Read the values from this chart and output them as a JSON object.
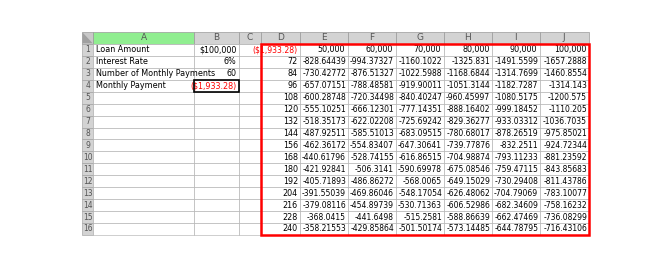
{
  "left_labels": [
    "Loan Amount",
    "Interest Rate",
    "Number of Monthly Payments",
    "Monthly Payment"
  ],
  "left_values": [
    "$100,000",
    "6%",
    "60",
    "($1,933.28)"
  ],
  "col_letters": [
    "A",
    "B",
    "C",
    "D",
    "E",
    "F",
    "G",
    "H",
    "I",
    "J"
  ],
  "row_numbers": [
    "1",
    "2",
    "3",
    "4",
    "5",
    "6",
    "7",
    "8",
    "9",
    "10",
    "11",
    "12",
    "13",
    "14",
    "15",
    "16"
  ],
  "col_headers_row1": [
    "($1,933.28)",
    "50,000",
    "60,000",
    "70,000",
    "80,000",
    "90,000",
    "100,000"
  ],
  "row_headers": [
    72,
    84,
    96,
    108,
    120,
    132,
    144,
    156,
    168,
    180,
    192,
    204,
    216,
    228,
    240
  ],
  "table_data": [
    [
      -828.64439,
      -994.37327,
      -1160.1022,
      -1325.831,
      -1491.5599,
      -1657.2888
    ],
    [
      -730.42772,
      -876.51327,
      -1022.5988,
      -1168.6844,
      -1314.7699,
      -1460.8554
    ],
    [
      -657.07151,
      -788.48581,
      -919.90011,
      -1051.3144,
      -1182.7287,
      -1314.143
    ],
    [
      -600.28748,
      -720.34498,
      -840.40247,
      -960.45997,
      -1080.5175,
      -1200.575
    ],
    [
      -555.10251,
      -666.12301,
      -777.14351,
      -888.16402,
      -999.18452,
      -1110.205
    ],
    [
      -518.35173,
      -622.02208,
      -725.69242,
      -829.36277,
      -933.03312,
      -1036.7035
    ],
    [
      -487.92511,
      -585.51013,
      -683.09515,
      -780.68017,
      -878.26519,
      -975.85021
    ],
    [
      -462.36172,
      -554.83407,
      -647.30641,
      -739.77876,
      -832.2511,
      -924.72344
    ],
    [
      -440.61796,
      -528.74155,
      -616.86515,
      -704.98874,
      -793.11233,
      -881.23592
    ],
    [
      -421.92841,
      -506.3141,
      -590.69978,
      -675.08546,
      -759.47115,
      -843.85683
    ],
    [
      -405.71893,
      -486.86272,
      -568.0065,
      -649.15029,
      -730.29408,
      -811.43786
    ],
    [
      -391.55039,
      -469.86046,
      -548.17054,
      -626.48062,
      -704.79069,
      -783.10077
    ],
    [
      -379.08116,
      -454.89739,
      -530.71363,
      -606.52986,
      -682.34609,
      -758.16232
    ],
    [
      -368.0415,
      -441.6498,
      -515.2581,
      -588.86639,
      -662.47469,
      -736.08299
    ],
    [
      -358.21553,
      -429.85864,
      -501.50174,
      -573.14485,
      -644.78795,
      -716.43106
    ]
  ],
  "col_A_green": "#90EE90",
  "col_header_gray": "#D3D3D3",
  "row_num_gray": "#D3D3D3",
  "triangle_gray": "#C0C0C0",
  "cell_white": "#FFFFFF",
  "grid_color": "#AAAAAA",
  "red_border": "#FF0000",
  "text_black": "#000000",
  "text_red": "#FF0000",
  "fontsize_header": 6.0,
  "fontsize_data": 5.8,
  "fontsize_letter": 6.5
}
